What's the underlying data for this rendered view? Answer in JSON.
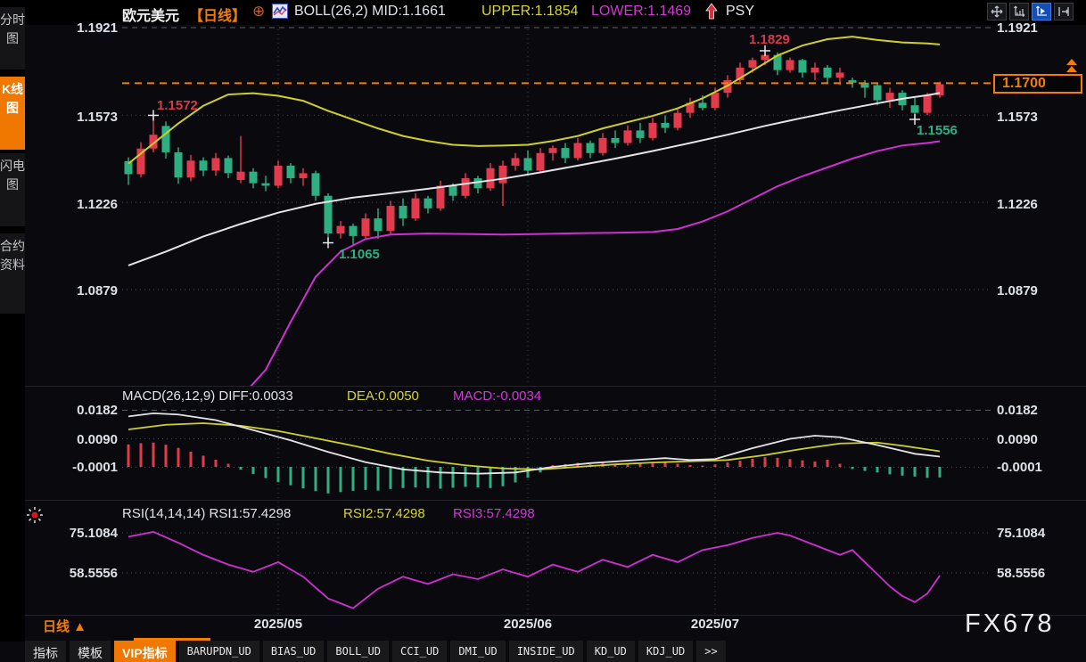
{
  "header": {
    "symbol": "欧元美元",
    "period": "【日线】",
    "circle_plus_glyph": "⊕",
    "indicator_main": "BOLL(26,2) MID:1.1661",
    "indicator_upper": "UPPER:1.1854",
    "indicator_lower": "LOWER:1.1469",
    "psy": "PSY"
  },
  "toolbar": {
    "buttons": [
      {
        "icon": "pan-crosshair-icon",
        "active": false
      },
      {
        "icon": "axis-scale-icon",
        "active": false
      },
      {
        "icon": "axis-play-icon",
        "active": true
      },
      {
        "icon": "collapse-right-icon",
        "active": false
      }
    ]
  },
  "sidebar": {
    "items": [
      {
        "label": "分时图",
        "active": false
      },
      {
        "label": "K线图",
        "active": true
      },
      {
        "label": "闪电图",
        "active": false
      },
      {
        "label": "合约资料",
        "active": false
      }
    ]
  },
  "main_chart": {
    "y_labels": [
      "1.1921",
      "1.1573",
      "1.1226",
      "1.0879"
    ],
    "current_price": "1.1700",
    "annotations": {
      "local_high": "1.1572",
      "peak_high": "1.1829",
      "major_low": "1.1065",
      "pullback_low": "1.1556"
    }
  },
  "macd_panel": {
    "title": "MACD(26,12,9) DIFF:0.0033",
    "dea": "DEA:0.0050",
    "macd": "MACD:-0.0034",
    "y_labels": [
      "0.0182",
      "0.0090",
      "-0.0001"
    ]
  },
  "rsi_panel": {
    "title": "RSI(14,14,14) RSI1:57.4298",
    "rsi2": "RSI2:57.4298",
    "rsi3": "RSI3:57.4298",
    "y_labels": [
      "75.1084",
      "58.5556"
    ]
  },
  "x_axis": {
    "period": "日线 ▲",
    "dates": [
      "2025/05",
      "2025/06",
      "2025/07"
    ]
  },
  "watermark": "FX678",
  "tabs": {
    "active": "VIP指标",
    "items": [
      "指标",
      "模板",
      "VIP指标",
      "BARUPDN_UD",
      "BIAS_UD",
      "BOLL_UD",
      "CCI_UD",
      "DMI_UD",
      "INSIDE_UD",
      "KD_UD",
      "KDJ_UD",
      ">>"
    ]
  },
  "colors": {
    "up": "#e23b4e",
    "down": "#2fae81",
    "boll_upper": "#cfcf2a",
    "boll_mid": "#e4e4e8",
    "boll_lower": "#cf2fd3",
    "accent_orange": "#f57d00",
    "axis_text": "#dde1e8",
    "grid_dot": "#45454f",
    "grid_dash": "#5a5f66"
  },
  "chart_data": {
    "type": "candlestick",
    "instrument": "欧元美元 (EUR/USD)",
    "period": "日线 (daily)",
    "x_tick_labels": [
      "2025/05",
      "2025/06",
      "2025/07"
    ],
    "x_tick_indices": [
      12,
      32,
      47
    ],
    "y_ticks": [
      1.1921,
      1.1573,
      1.1226,
      1.0879
    ],
    "current_price": 1.17,
    "candles": [
      [
        1.139,
        1.1405,
        1.1295,
        1.1338
      ],
      [
        1.1338,
        1.1465,
        1.1325,
        1.144
      ],
      [
        1.144,
        1.1572,
        1.1425,
        1.1495
      ],
      [
        1.153,
        1.1548,
        1.14,
        1.1425
      ],
      [
        1.1425,
        1.1445,
        1.13,
        1.1325
      ],
      [
        1.1325,
        1.1415,
        1.131,
        1.1392
      ],
      [
        1.1392,
        1.1405,
        1.133,
        1.1352
      ],
      [
        1.1352,
        1.1422,
        1.1332,
        1.1402
      ],
      [
        1.1402,
        1.1412,
        1.1322,
        1.1342
      ],
      [
        1.1315,
        1.149,
        1.1302,
        1.1348
      ],
      [
        1.1348,
        1.1362,
        1.1282,
        1.1302
      ],
      [
        1.1302,
        1.1332,
        1.127,
        1.1292
      ],
      [
        1.1292,
        1.1392,
        1.1282,
        1.1372
      ],
      [
        1.1372,
        1.1382,
        1.1302,
        1.1322
      ],
      [
        1.1322,
        1.1362,
        1.1292,
        1.1342
      ],
      [
        1.1342,
        1.1352,
        1.1232,
        1.1252
      ],
      [
        1.1252,
        1.1262,
        1.1065,
        1.1102
      ],
      [
        1.1102,
        1.1152,
        1.1082,
        1.1132
      ],
      [
        1.1132,
        1.1142,
        1.1052,
        1.1092
      ],
      [
        1.1092,
        1.1182,
        1.1082,
        1.1162
      ],
      [
        1.1162,
        1.1202,
        1.1082,
        1.1112
      ],
      [
        1.1112,
        1.1232,
        1.1102,
        1.1212
      ],
      [
        1.1212,
        1.1242,
        1.1132,
        1.1162
      ],
      [
        1.1162,
        1.1262,
        1.1152,
        1.1242
      ],
      [
        1.1242,
        1.1252,
        1.1182,
        1.1202
      ],
      [
        1.1202,
        1.1312,
        1.1192,
        1.1292
      ],
      [
        1.1292,
        1.1302,
        1.1232,
        1.1252
      ],
      [
        1.1252,
        1.1342,
        1.1242,
        1.1322
      ],
      [
        1.1322,
        1.1332,
        1.1262,
        1.1282
      ],
      [
        1.1282,
        1.1382,
        1.1272,
        1.1362
      ],
      [
        1.1302,
        1.1392,
        1.1212,
        1.1372
      ],
      [
        1.1372,
        1.1422,
        1.1352,
        1.1402
      ],
      [
        1.1402,
        1.1432,
        1.1332,
        1.1352
      ],
      [
        1.1352,
        1.1442,
        1.1342,
        1.1422
      ],
      [
        1.1422,
        1.1452,
        1.1392,
        1.1442
      ],
      [
        1.1442,
        1.1462,
        1.1382,
        1.1402
      ],
      [
        1.1402,
        1.1482,
        1.1392,
        1.1462
      ],
      [
        1.1462,
        1.1472,
        1.1402,
        1.1422
      ],
      [
        1.1422,
        1.1502,
        1.1412,
        1.1482
      ],
      [
        1.1482,
        1.1512,
        1.1442,
        1.1462
      ],
      [
        1.1462,
        1.1532,
        1.1452,
        1.1512
      ],
      [
        1.1512,
        1.1542,
        1.1462,
        1.1482
      ],
      [
        1.1482,
        1.1562,
        1.1472,
        1.1542
      ],
      [
        1.1542,
        1.1572,
        1.1502,
        1.1522
      ],
      [
        1.1522,
        1.1602,
        1.1512,
        1.1582
      ],
      [
        1.1582,
        1.1642,
        1.1562,
        1.1622
      ],
      [
        1.1622,
        1.1652,
        1.1592,
        1.1602
      ],
      [
        1.1602,
        1.1682,
        1.1592,
        1.1662
      ],
      [
        1.1662,
        1.1732,
        1.1642,
        1.1712
      ],
      [
        1.1712,
        1.1782,
        1.1702,
        1.1762
      ],
      [
        1.1762,
        1.1802,
        1.1742,
        1.1792
      ],
      [
        1.1792,
        1.1829,
        1.1772,
        1.1812
      ],
      [
        1.1812,
        1.1822,
        1.1732,
        1.1752
      ],
      [
        1.1752,
        1.1802,
        1.1742,
        1.1792
      ],
      [
        1.1792,
        1.1797,
        1.1722,
        1.1742
      ],
      [
        1.1742,
        1.1782,
        1.1712,
        1.1762
      ],
      [
        1.1762,
        1.1772,
        1.1702,
        1.1722
      ],
      [
        1.1722,
        1.1762,
        1.1692,
        1.1742
      ],
      [
        1.1712,
        1.1722,
        1.1682,
        1.1702
      ],
      [
        1.1702,
        1.1712,
        1.1642,
        1.1682
      ],
      [
        1.1692,
        1.1702,
        1.1612,
        1.1632
      ],
      [
        1.1632,
        1.1682,
        1.1602,
        1.1662
      ],
      [
        1.1662,
        1.1672,
        1.1592,
        1.1612
      ],
      [
        1.1612,
        1.1642,
        1.1556,
        1.1582
      ],
      [
        1.1582,
        1.1662,
        1.1572,
        1.1652
      ],
      [
        1.1652,
        1.1706,
        1.1642,
        1.1696
      ]
    ],
    "marks": {
      "local_high": {
        "index": 2,
        "price": 1.1572
      },
      "major_low": {
        "index": 16,
        "price": 1.1065
      },
      "peak_high": {
        "index": 51,
        "price": 1.1829
      },
      "pullback_low": {
        "index": 63,
        "price": 1.1556
      }
    },
    "boll": {
      "period": 26,
      "deviation": 2,
      "mid_last": 1.1661,
      "upper_last": 1.1854,
      "lower_last": 1.1469,
      "upper_anchors": [
        [
          0,
          1.138
        ],
        [
          2,
          1.146
        ],
        [
          4,
          1.154
        ],
        [
          6,
          1.161
        ],
        [
          8,
          1.1655
        ],
        [
          10,
          1.166
        ],
        [
          12,
          1.165
        ],
        [
          14,
          1.163
        ],
        [
          16,
          1.159
        ],
        [
          18,
          1.1555
        ],
        [
          20,
          1.152
        ],
        [
          22,
          1.149
        ],
        [
          24,
          1.147
        ],
        [
          26,
          1.1455
        ],
        [
          28,
          1.145
        ],
        [
          30,
          1.1452
        ],
        [
          32,
          1.1455
        ],
        [
          34,
          1.147
        ],
        [
          36,
          1.149
        ],
        [
          38,
          1.152
        ],
        [
          40,
          1.1545
        ],
        [
          42,
          1.157
        ],
        [
          44,
          1.16
        ],
        [
          46,
          1.164
        ],
        [
          48,
          1.169
        ],
        [
          50,
          1.175
        ],
        [
          52,
          1.181
        ],
        [
          54,
          1.185
        ],
        [
          56,
          1.1875
        ],
        [
          58,
          1.1885
        ],
        [
          60,
          1.1872
        ],
        [
          62,
          1.1862
        ],
        [
          64,
          1.1858
        ],
        [
          65,
          1.1854
        ]
      ],
      "mid_anchors": [
        [
          0,
          1.0975
        ],
        [
          3,
          1.103
        ],
        [
          6,
          1.109
        ],
        [
          9,
          1.114
        ],
        [
          12,
          1.1185
        ],
        [
          15,
          1.122
        ],
        [
          18,
          1.1245
        ],
        [
          21,
          1.1262
        ],
        [
          24,
          1.128
        ],
        [
          27,
          1.13
        ],
        [
          30,
          1.132
        ],
        [
          33,
          1.1345
        ],
        [
          36,
          1.1372
        ],
        [
          39,
          1.14
        ],
        [
          42,
          1.143
        ],
        [
          45,
          1.1462
        ],
        [
          48,
          1.1495
        ],
        [
          51,
          1.153
        ],
        [
          54,
          1.1562
        ],
        [
          57,
          1.1592
        ],
        [
          60,
          1.162
        ],
        [
          62,
          1.1638
        ],
        [
          64,
          1.1652
        ],
        [
          65,
          1.1661
        ]
      ],
      "lower_anchors": [
        [
          9,
          1.045
        ],
        [
          11,
          1.056
        ],
        [
          13,
          1.075
        ],
        [
          15,
          1.093
        ],
        [
          17,
          1.103
        ],
        [
          19,
          1.108
        ],
        [
          21,
          1.1098
        ],
        [
          24,
          1.1102
        ],
        [
          27,
          1.11
        ],
        [
          30,
          1.1098
        ],
        [
          33,
          1.11
        ],
        [
          36,
          1.1103
        ],
        [
          39,
          1.1105
        ],
        [
          42,
          1.1108
        ],
        [
          44,
          1.112
        ],
        [
          46,
          1.115
        ],
        [
          48,
          1.119
        ],
        [
          50,
          1.124
        ],
        [
          52,
          1.129
        ],
        [
          54,
          1.133
        ],
        [
          56,
          1.1365
        ],
        [
          58,
          1.14
        ],
        [
          60,
          1.143
        ],
        [
          62,
          1.1452
        ],
        [
          64,
          1.1462
        ],
        [
          65,
          1.1469
        ]
      ]
    },
    "macd": {
      "params": [
        26,
        12,
        9
      ],
      "diff_last": 0.0033,
      "dea_last": 0.005,
      "macd_last": -0.0034,
      "y_ticks": [
        0.0182,
        0.009,
        -0.0001
      ],
      "hist": [
        0.0072,
        0.0076,
        0.0078,
        0.0071,
        0.0061,
        0.0049,
        0.0036,
        0.0023,
        0.001,
        -0.0009,
        -0.0023,
        -0.0036,
        -0.0049,
        -0.0059,
        -0.0069,
        -0.0078,
        -0.0085,
        -0.0081,
        -0.0077,
        -0.0074,
        -0.0076,
        -0.0071,
        -0.0068,
        -0.0066,
        -0.0068,
        -0.007,
        -0.0067,
        -0.0064,
        -0.0066,
        -0.0068,
        -0.0062,
        -0.005,
        -0.0035,
        -0.0018,
        0.0006,
        0.0009,
        0.0013,
        0.0008,
        0.0012,
        0.0006,
        0.001,
        0.0014,
        0.0011,
        0.0016,
        0.001,
        0.0006,
        0.0004,
        0.0008,
        0.0014,
        0.002,
        0.0026,
        0.0031,
        0.0029,
        0.0025,
        0.0021,
        0.0017,
        0.0023,
        0.001,
        -0.0007,
        -0.0013,
        -0.0018,
        -0.0024,
        -0.0028,
        -0.0031,
        -0.0035,
        -0.0034
      ],
      "diff_anchors": [
        [
          0,
          0.0162
        ],
        [
          2,
          0.0172
        ],
        [
          4,
          0.0168
        ],
        [
          7,
          0.015
        ],
        [
          10,
          0.0118
        ],
        [
          13,
          0.0085
        ],
        [
          16,
          0.0048
        ],
        [
          19,
          0.0015
        ],
        [
          22,
          -0.0008
        ],
        [
          25,
          -0.0018
        ],
        [
          28,
          -0.0022
        ],
        [
          31,
          -0.0018
        ],
        [
          34,
          0.0
        ],
        [
          37,
          0.0012
        ],
        [
          40,
          0.002
        ],
        [
          43,
          0.0028
        ],
        [
          45,
          0.0022
        ],
        [
          47,
          0.0025
        ],
        [
          50,
          0.006
        ],
        [
          53,
          0.009
        ],
        [
          55,
          0.01
        ],
        [
          57,
          0.0095
        ],
        [
          60,
          0.007
        ],
        [
          63,
          0.0042
        ],
        [
          65,
          0.0033
        ]
      ],
      "dea_anchors": [
        [
          0,
          0.012
        ],
        [
          3,
          0.0135
        ],
        [
          6,
          0.014
        ],
        [
          9,
          0.0132
        ],
        [
          12,
          0.0115
        ],
        [
          15,
          0.0092
        ],
        [
          18,
          0.0068
        ],
        [
          21,
          0.0042
        ],
        [
          24,
          0.002
        ],
        [
          27,
          0.0005
        ],
        [
          30,
          -0.0005
        ],
        [
          33,
          -0.0008
        ],
        [
          36,
          0.0
        ],
        [
          39,
          0.0008
        ],
        [
          42,
          0.0014
        ],
        [
          45,
          0.0018
        ],
        [
          48,
          0.0022
        ],
        [
          51,
          0.0038
        ],
        [
          54,
          0.0058
        ],
        [
          57,
          0.0075
        ],
        [
          60,
          0.0078
        ],
        [
          62,
          0.0068
        ],
        [
          64,
          0.0056
        ],
        [
          65,
          0.005
        ]
      ]
    },
    "rsi": {
      "params": [
        14,
        14,
        14
      ],
      "rsi1_last": 57.4298,
      "rsi2_last": 57.4298,
      "rsi3_last": 57.4298,
      "y_ticks": [
        75.1084,
        58.5556
      ],
      "line_anchors": [
        [
          0,
          73.5
        ],
        [
          2,
          75.5
        ],
        [
          4,
          71
        ],
        [
          6,
          66
        ],
        [
          8,
          62
        ],
        [
          10,
          59
        ],
        [
          12,
          63
        ],
        [
          14,
          57
        ],
        [
          16,
          48
        ],
        [
          18,
          44
        ],
        [
          20,
          52
        ],
        [
          22,
          57
        ],
        [
          24,
          54
        ],
        [
          26,
          58
        ],
        [
          28,
          56
        ],
        [
          30,
          60
        ],
        [
          32,
          57
        ],
        [
          34,
          62
        ],
        [
          36,
          59
        ],
        [
          38,
          64
        ],
        [
          40,
          61
        ],
        [
          42,
          66
        ],
        [
          44,
          63
        ],
        [
          46,
          68
        ],
        [
          48,
          70
        ],
        [
          50,
          73
        ],
        [
          52,
          75.1
        ],
        [
          53,
          74
        ],
        [
          55,
          70
        ],
        [
          57,
          66
        ],
        [
          58,
          68
        ],
        [
          59,
          63
        ],
        [
          60,
          58
        ],
        [
          61,
          53
        ],
        [
          62,
          49
        ],
        [
          63,
          46.5
        ],
        [
          64,
          50
        ],
        [
          65,
          57.43
        ]
      ]
    }
  }
}
